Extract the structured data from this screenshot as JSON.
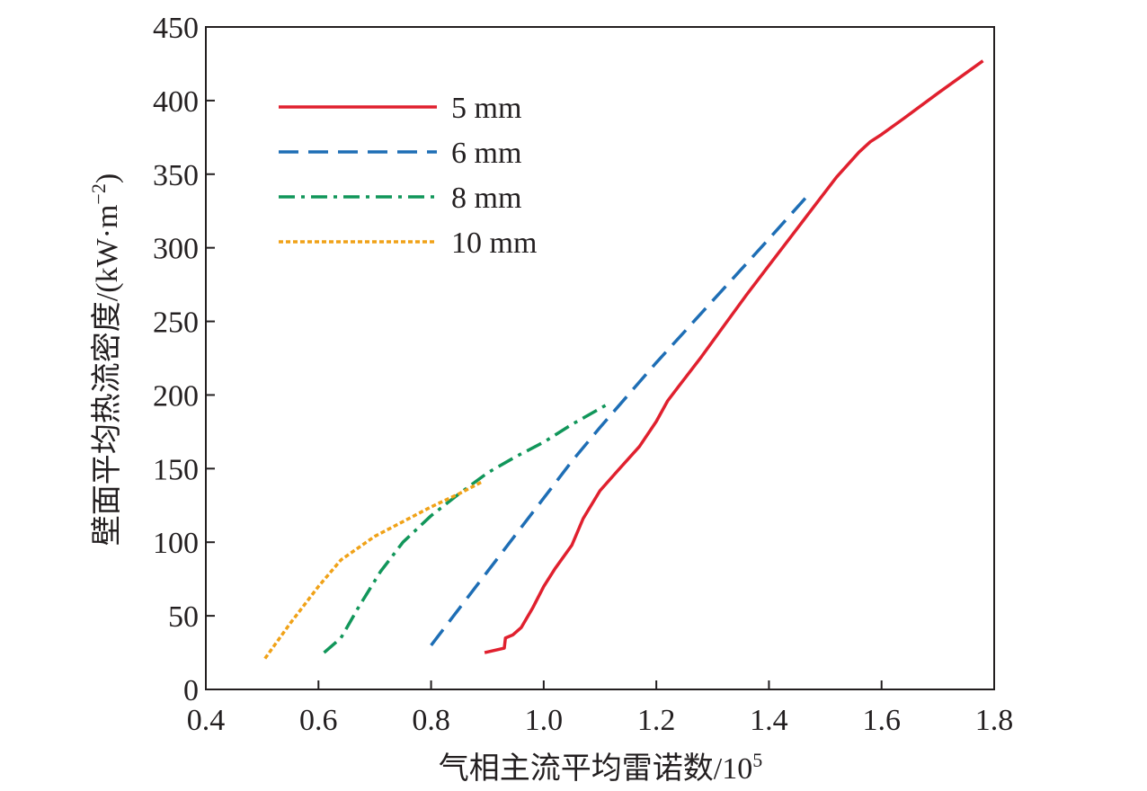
{
  "chart_data": {
    "type": "line",
    "title": "",
    "xlabel": "气相主流平均雷诺数/10",
    "xlabel_sup": "5",
    "ylabel": "壁面平均热流密度/(kW·m",
    "ylabel_sup": "−2",
    "ylabel_close": ")",
    "xlim": [
      0.4,
      1.8
    ],
    "ylim": [
      0,
      450
    ],
    "xticks": [
      0.4,
      0.6,
      0.8,
      1.0,
      1.2,
      1.4,
      1.6,
      1.8
    ],
    "xtick_labels": [
      "0.4",
      "0.6",
      "0.8",
      "1.0",
      "1.2",
      "1.4",
      "1.6",
      "1.8"
    ],
    "yticks": [
      0,
      50,
      100,
      150,
      200,
      250,
      300,
      350,
      400,
      450
    ],
    "ytick_labels": [
      "0",
      "50",
      "100",
      "150",
      "200",
      "250",
      "300",
      "350",
      "400",
      "450"
    ],
    "grid": false,
    "legend_position": "top-left",
    "series": [
      {
        "name": "5 mm",
        "color": "#e0202e",
        "dash": "solid",
        "x": [
          0.895,
          0.93,
          0.932,
          0.945,
          0.96,
          0.98,
          1.0,
          1.02,
          1.05,
          1.07,
          1.1,
          1.13,
          1.17,
          1.2,
          1.22,
          1.24,
          1.28,
          1.32,
          1.36,
          1.4,
          1.44,
          1.48,
          1.52,
          1.56,
          1.58,
          1.6,
          1.64,
          1.7,
          1.78
        ],
        "y": [
          25,
          28,
          35,
          37,
          42,
          55,
          70,
          82,
          98,
          116,
          135,
          148,
          165,
          182,
          196,
          206,
          226,
          247,
          268,
          288,
          308,
          328,
          348,
          365,
          372,
          377,
          388,
          405,
          427
        ]
      },
      {
        "name": "6 mm",
        "color": "#1e6eb5",
        "dash": "long-dash",
        "x": [
          0.8,
          0.85,
          0.9,
          0.95,
          1.0,
          1.05,
          1.1,
          1.15,
          1.2,
          1.25,
          1.3,
          1.35,
          1.4,
          1.47
        ],
        "y": [
          30,
          55,
          80,
          105,
          130,
          155,
          178,
          200,
          222,
          243,
          264,
          285,
          306,
          336
        ]
      },
      {
        "name": "8 mm",
        "color": "#11965a",
        "dash": "dash-dot",
        "x": [
          0.61,
          0.64,
          0.67,
          0.71,
          0.75,
          0.8,
          0.85,
          0.9,
          0.95,
          1.0,
          1.05,
          1.11
        ],
        "y": [
          25,
          35,
          55,
          80,
          100,
          118,
          133,
          147,
          158,
          168,
          180,
          193
        ]
      },
      {
        "name": "10 mm",
        "color": "#f0a218",
        "dash": "dotted",
        "x": [
          0.505,
          0.55,
          0.6,
          0.64,
          0.67,
          0.7,
          0.75,
          0.8,
          0.85,
          0.89
        ],
        "y": [
          21,
          45,
          70,
          88,
          96,
          104,
          114,
          124,
          133,
          141
        ]
      }
    ]
  }
}
